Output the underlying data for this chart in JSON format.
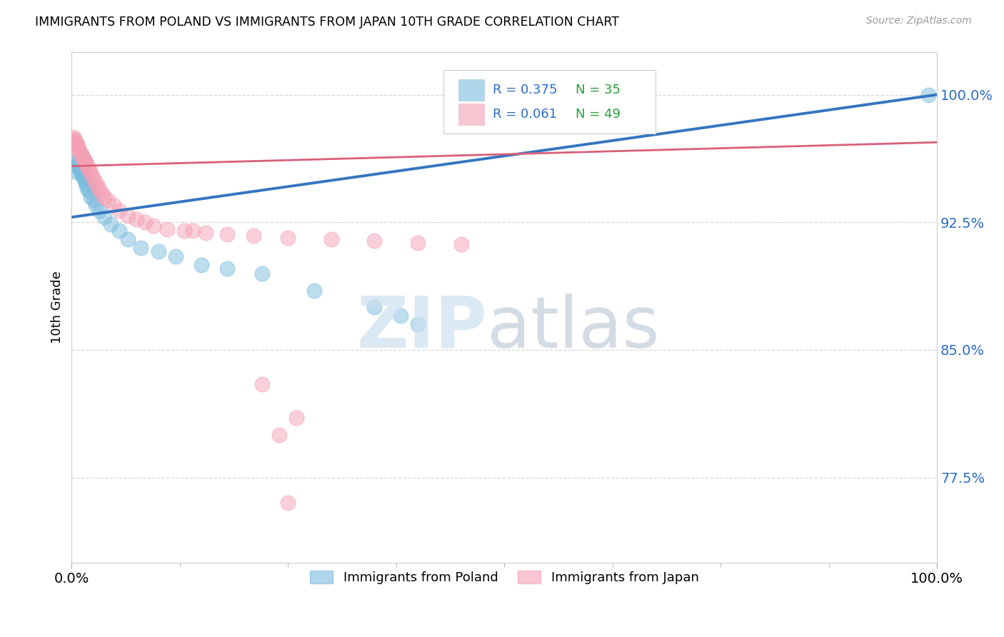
{
  "title": "IMMIGRANTS FROM POLAND VS IMMIGRANTS FROM JAPAN 10TH GRADE CORRELATION CHART",
  "source": "Source: ZipAtlas.com",
  "ylabel": "10th Grade",
  "xlim": [
    0.0,
    1.0
  ],
  "ylim": [
    0.725,
    1.025
  ],
  "yticks": [
    0.775,
    0.85,
    0.925,
    1.0
  ],
  "ytick_labels": [
    "77.5%",
    "85.0%",
    "92.5%",
    "100.0%"
  ],
  "xtick_labels": [
    "0.0%",
    "100.0%"
  ],
  "poland_color": "#7bbcde",
  "japan_color": "#f4a0b5",
  "line_poland_color": "#3575c0",
  "line_japan_color": "#d9607a",
  "poland_R": 0.375,
  "poland_N": 35,
  "japan_R": 0.061,
  "japan_N": 49,
  "legend_text_color": "#2b6cc4",
  "legend_N_color": "#2b9e3a",
  "watermark_zip_color": "#cce0f0",
  "watermark_atlas_color": "#b0bfd0",
  "poland_x": [
    0.003,
    0.005,
    0.006,
    0.007,
    0.008,
    0.009,
    0.01,
    0.011,
    0.012,
    0.013,
    0.014,
    0.015,
    0.016,
    0.017,
    0.018,
    0.02,
    0.022,
    0.025,
    0.028,
    0.032,
    0.038,
    0.045,
    0.055,
    0.065,
    0.08,
    0.1,
    0.12,
    0.15,
    0.18,
    0.22,
    0.28,
    0.35,
    0.38,
    0.4,
    0.99
  ],
  "poland_y": [
    0.955,
    0.96,
    0.958,
    0.962,
    0.96,
    0.958,
    0.956,
    0.954,
    0.953,
    0.952,
    0.951,
    0.95,
    0.948,
    0.947,
    0.945,
    0.943,
    0.94,
    0.938,
    0.935,
    0.932,
    0.928,
    0.924,
    0.92,
    0.915,
    0.91,
    0.908,
    0.905,
    0.9,
    0.898,
    0.895,
    0.885,
    0.875,
    0.87,
    0.865,
    1.0
  ],
  "japan_x": [
    0.002,
    0.003,
    0.004,
    0.005,
    0.006,
    0.007,
    0.008,
    0.009,
    0.01,
    0.011,
    0.012,
    0.013,
    0.014,
    0.015,
    0.016,
    0.017,
    0.018,
    0.019,
    0.02,
    0.022,
    0.024,
    0.026,
    0.028,
    0.03,
    0.032,
    0.035,
    0.038,
    0.042,
    0.048,
    0.055,
    0.065,
    0.075,
    0.085,
    0.095,
    0.11,
    0.13,
    0.155,
    0.18,
    0.21,
    0.25,
    0.3,
    0.35,
    0.4,
    0.45,
    0.22,
    0.26,
    0.24,
    0.25,
    0.14
  ],
  "japan_y": [
    0.975,
    0.974,
    0.973,
    0.972,
    0.971,
    0.97,
    0.968,
    0.967,
    0.966,
    0.965,
    0.964,
    0.963,
    0.962,
    0.961,
    0.96,
    0.959,
    0.958,
    0.957,
    0.956,
    0.954,
    0.952,
    0.95,
    0.948,
    0.946,
    0.944,
    0.942,
    0.94,
    0.938,
    0.935,
    0.932,
    0.929,
    0.927,
    0.925,
    0.923,
    0.921,
    0.92,
    0.919,
    0.918,
    0.917,
    0.916,
    0.915,
    0.914,
    0.913,
    0.912,
    0.83,
    0.81,
    0.8,
    0.76,
    0.92
  ]
}
